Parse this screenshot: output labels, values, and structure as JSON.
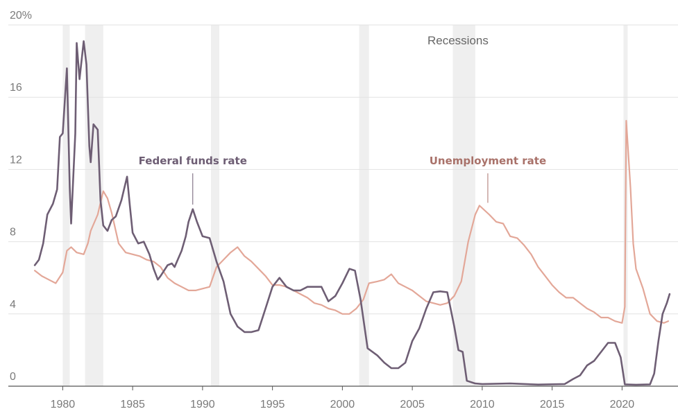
{
  "chart_data": {
    "type": "line",
    "title": "",
    "xlabel": "",
    "ylabel": "",
    "xlim": [
      1977.5,
      2024.0
    ],
    "ylim": [
      0,
      20
    ],
    "y_ticks": [
      0,
      4,
      8,
      12,
      16,
      20
    ],
    "y_tick_labels": [
      "0",
      "4",
      "8",
      "12",
      "16",
      "20%"
    ],
    "x_ticks": [
      1980,
      1985,
      1990,
      1995,
      2000,
      2005,
      2010,
      2015,
      2020
    ],
    "x_tick_labels": [
      "1980",
      "1985",
      "1990",
      "1995",
      "2000",
      "2005",
      "2010",
      "2015",
      "2020"
    ],
    "grid": "horizontal",
    "recessions_label": "Recessions",
    "recessions": [
      [
        1980.0,
        1980.5
      ],
      [
        1981.6,
        1982.9
      ],
      [
        1990.6,
        1991.2
      ],
      [
        2001.2,
        2001.9
      ],
      [
        2007.9,
        2009.5
      ],
      [
        2020.1,
        2020.4
      ]
    ],
    "series": [
      {
        "name": "Unemployment rate",
        "color": "#e3a798",
        "points": [
          [
            1978.0,
            6.4
          ],
          [
            1978.5,
            6.1
          ],
          [
            1979.0,
            5.9
          ],
          [
            1979.5,
            5.7
          ],
          [
            1980.0,
            6.3
          ],
          [
            1980.3,
            7.5
          ],
          [
            1980.6,
            7.7
          ],
          [
            1981.0,
            7.4
          ],
          [
            1981.5,
            7.3
          ],
          [
            1981.8,
            7.9
          ],
          [
            1982.0,
            8.6
          ],
          [
            1982.5,
            9.5
          ],
          [
            1982.9,
            10.8
          ],
          [
            1983.2,
            10.4
          ],
          [
            1983.5,
            9.6
          ],
          [
            1984.0,
            7.9
          ],
          [
            1984.5,
            7.4
          ],
          [
            1985.0,
            7.3
          ],
          [
            1985.5,
            7.2
          ],
          [
            1986.0,
            7.0
          ],
          [
            1986.5,
            6.9
          ],
          [
            1987.0,
            6.6
          ],
          [
            1987.5,
            6.0
          ],
          [
            1988.0,
            5.7
          ],
          [
            1988.5,
            5.5
          ],
          [
            1989.0,
            5.3
          ],
          [
            1989.5,
            5.3
          ],
          [
            1990.0,
            5.4
          ],
          [
            1990.5,
            5.5
          ],
          [
            1991.0,
            6.6
          ],
          [
            1991.5,
            7.0
          ],
          [
            1992.0,
            7.4
          ],
          [
            1992.5,
            7.7
          ],
          [
            1993.0,
            7.2
          ],
          [
            1993.5,
            6.9
          ],
          [
            1994.0,
            6.5
          ],
          [
            1994.5,
            6.1
          ],
          [
            1995.0,
            5.6
          ],
          [
            1995.5,
            5.6
          ],
          [
            1996.0,
            5.5
          ],
          [
            1996.5,
            5.3
          ],
          [
            1997.0,
            5.1
          ],
          [
            1997.5,
            4.9
          ],
          [
            1998.0,
            4.6
          ],
          [
            1998.5,
            4.5
          ],
          [
            1999.0,
            4.3
          ],
          [
            1999.5,
            4.2
          ],
          [
            2000.0,
            4.0
          ],
          [
            2000.5,
            4.0
          ],
          [
            2001.0,
            4.3
          ],
          [
            2001.5,
            4.8
          ],
          [
            2001.9,
            5.7
          ],
          [
            2002.5,
            5.8
          ],
          [
            2003.0,
            5.9
          ],
          [
            2003.5,
            6.2
          ],
          [
            2004.0,
            5.7
          ],
          [
            2004.5,
            5.5
          ],
          [
            2005.0,
            5.3
          ],
          [
            2005.5,
            5.0
          ],
          [
            2006.0,
            4.7
          ],
          [
            2006.5,
            4.6
          ],
          [
            2007.0,
            4.5
          ],
          [
            2007.5,
            4.6
          ],
          [
            2008.0,
            5.0
          ],
          [
            2008.5,
            5.8
          ],
          [
            2009.0,
            8.0
          ],
          [
            2009.5,
            9.5
          ],
          [
            2009.8,
            10.0
          ],
          [
            2010.5,
            9.5
          ],
          [
            2011.0,
            9.1
          ],
          [
            2011.5,
            9.0
          ],
          [
            2012.0,
            8.3
          ],
          [
            2012.5,
            8.2
          ],
          [
            2013.0,
            7.8
          ],
          [
            2013.5,
            7.3
          ],
          [
            2014.0,
            6.6
          ],
          [
            2014.5,
            6.1
          ],
          [
            2015.0,
            5.6
          ],
          [
            2015.5,
            5.2
          ],
          [
            2016.0,
            4.9
          ],
          [
            2016.5,
            4.9
          ],
          [
            2017.0,
            4.6
          ],
          [
            2017.5,
            4.3
          ],
          [
            2018.0,
            4.1
          ],
          [
            2018.5,
            3.8
          ],
          [
            2019.0,
            3.8
          ],
          [
            2019.5,
            3.6
          ],
          [
            2020.0,
            3.5
          ],
          [
            2020.2,
            4.4
          ],
          [
            2020.3,
            14.7
          ],
          [
            2020.6,
            11.0
          ],
          [
            2020.8,
            7.9
          ],
          [
            2021.0,
            6.5
          ],
          [
            2021.5,
            5.4
          ],
          [
            2022.0,
            4.0
          ],
          [
            2022.5,
            3.6
          ],
          [
            2023.0,
            3.5
          ],
          [
            2023.3,
            3.6
          ]
        ]
      },
      {
        "name": "Federal funds rate",
        "color": "#6e5e74",
        "points": [
          [
            1978.0,
            6.7
          ],
          [
            1978.3,
            7.0
          ],
          [
            1978.6,
            7.9
          ],
          [
            1978.9,
            9.5
          ],
          [
            1979.3,
            10.1
          ],
          [
            1979.6,
            10.9
          ],
          [
            1979.8,
            13.8
          ],
          [
            1980.0,
            14.0
          ],
          [
            1980.3,
            17.6
          ],
          [
            1980.5,
            11.0
          ],
          [
            1980.6,
            9.0
          ],
          [
            1980.9,
            14.0
          ],
          [
            1981.0,
            19.0
          ],
          [
            1981.2,
            17.0
          ],
          [
            1981.5,
            19.1
          ],
          [
            1981.7,
            17.8
          ],
          [
            1981.9,
            13.3
          ],
          [
            1982.0,
            12.4
          ],
          [
            1982.2,
            14.5
          ],
          [
            1982.5,
            14.2
          ],
          [
            1982.7,
            10.3
          ],
          [
            1982.9,
            8.9
          ],
          [
            1983.2,
            8.6
          ],
          [
            1983.5,
            9.2
          ],
          [
            1983.8,
            9.4
          ],
          [
            1984.2,
            10.3
          ],
          [
            1984.6,
            11.6
          ],
          [
            1984.8,
            10.0
          ],
          [
            1985.0,
            8.5
          ],
          [
            1985.4,
            7.9
          ],
          [
            1985.8,
            8.0
          ],
          [
            1986.2,
            7.3
          ],
          [
            1986.5,
            6.5
          ],
          [
            1986.8,
            5.9
          ],
          [
            1987.0,
            6.1
          ],
          [
            1987.5,
            6.7
          ],
          [
            1987.8,
            6.8
          ],
          [
            1988.0,
            6.6
          ],
          [
            1988.5,
            7.5
          ],
          [
            1988.8,
            8.3
          ],
          [
            1989.0,
            9.1
          ],
          [
            1989.3,
            9.8
          ],
          [
            1989.6,
            9.1
          ],
          [
            1990.0,
            8.3
          ],
          [
            1990.5,
            8.2
          ],
          [
            1991.0,
            6.9
          ],
          [
            1991.5,
            5.8
          ],
          [
            1992.0,
            4.0
          ],
          [
            1992.5,
            3.3
          ],
          [
            1993.0,
            3.0
          ],
          [
            1993.5,
            3.0
          ],
          [
            1994.0,
            3.1
          ],
          [
            1994.5,
            4.3
          ],
          [
            1995.0,
            5.5
          ],
          [
            1995.5,
            6.0
          ],
          [
            1996.0,
            5.5
          ],
          [
            1996.5,
            5.3
          ],
          [
            1997.0,
            5.3
          ],
          [
            1997.5,
            5.5
          ],
          [
            1998.0,
            5.5
          ],
          [
            1998.5,
            5.5
          ],
          [
            1999.0,
            4.7
          ],
          [
            1999.5,
            5.0
          ],
          [
            2000.0,
            5.7
          ],
          [
            2000.5,
            6.5
          ],
          [
            2000.9,
            6.4
          ],
          [
            2001.3,
            4.8
          ],
          [
            2001.8,
            2.1
          ],
          [
            2002.5,
            1.7
          ],
          [
            2003.0,
            1.3
          ],
          [
            2003.5,
            1.0
          ],
          [
            2004.0,
            1.0
          ],
          [
            2004.5,
            1.3
          ],
          [
            2005.0,
            2.5
          ],
          [
            2005.5,
            3.2
          ],
          [
            2006.0,
            4.3
          ],
          [
            2006.5,
            5.2
          ],
          [
            2007.0,
            5.25
          ],
          [
            2007.5,
            5.2
          ],
          [
            2008.0,
            3.3
          ],
          [
            2008.3,
            2.0
          ],
          [
            2008.6,
            1.9
          ],
          [
            2008.9,
            0.3
          ],
          [
            2009.5,
            0.15
          ],
          [
            2010.0,
            0.12
          ],
          [
            2012.0,
            0.15
          ],
          [
            2014.0,
            0.09
          ],
          [
            2015.9,
            0.12
          ],
          [
            2016.5,
            0.4
          ],
          [
            2017.0,
            0.6
          ],
          [
            2017.5,
            1.15
          ],
          [
            2018.0,
            1.4
          ],
          [
            2018.5,
            1.9
          ],
          [
            2019.0,
            2.4
          ],
          [
            2019.5,
            2.4
          ],
          [
            2019.9,
            1.6
          ],
          [
            2020.2,
            0.1
          ],
          [
            2021.0,
            0.08
          ],
          [
            2022.0,
            0.1
          ],
          [
            2022.3,
            0.7
          ],
          [
            2022.6,
            2.5
          ],
          [
            2022.9,
            4.0
          ],
          [
            2023.2,
            4.6
          ],
          [
            2023.4,
            5.1
          ]
        ]
      }
    ],
    "annotations": [
      {
        "text": "Federal funds rate",
        "color": "#6e5e74",
        "x": 1989.3,
        "y": 9.9
      },
      {
        "text": "Unemployment rate",
        "color": "#a9726a",
        "x": 2010.4,
        "y": 10.0
      }
    ]
  }
}
